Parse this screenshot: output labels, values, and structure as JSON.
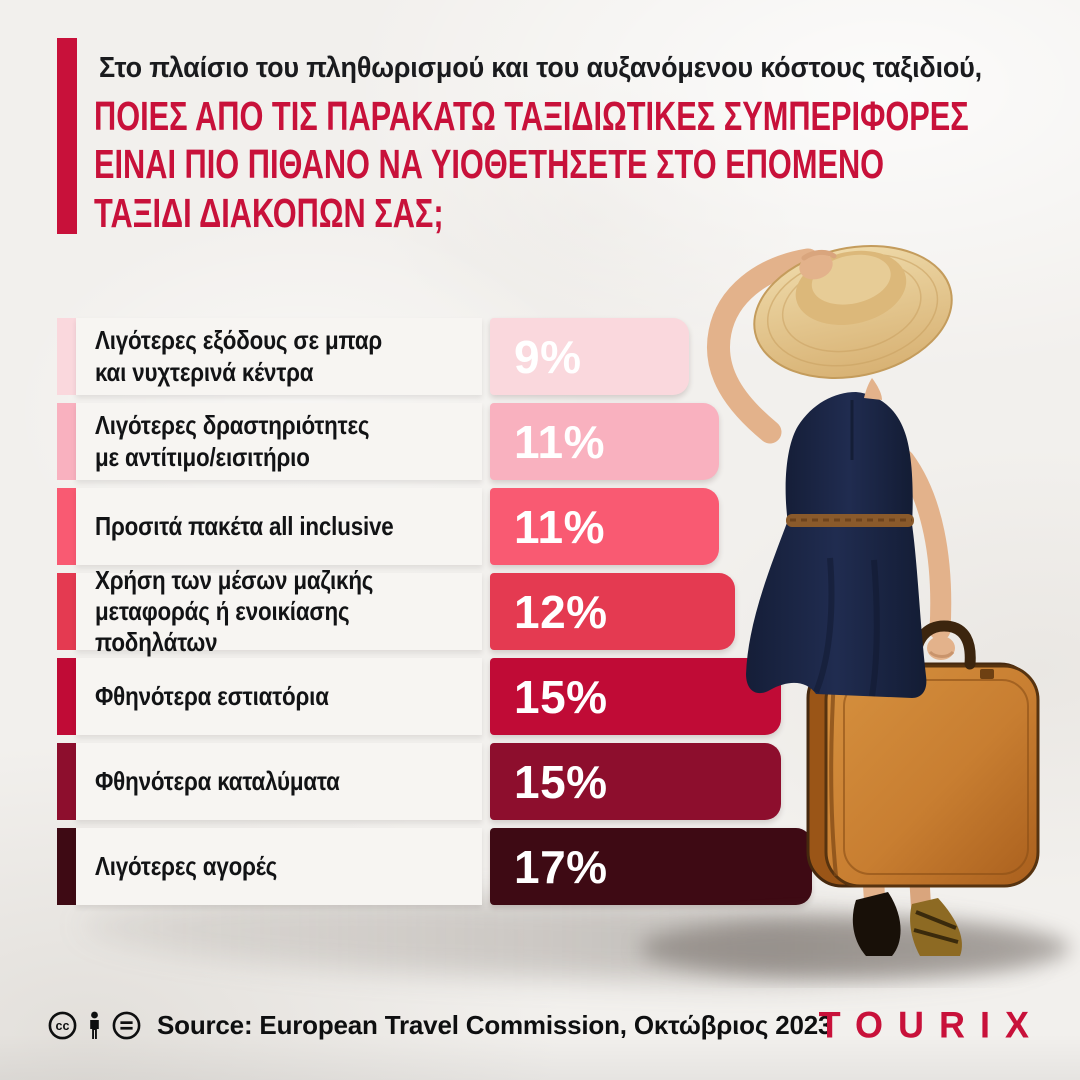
{
  "header": {
    "kicker": "Στο πλαίσιο του πληθωρισμού και του αυξανόμενου κόστους ταξιδιού,",
    "title": "ΠΟΙΕΣ ΑΠΟ ΤΙΣ ΠΑΡΑΚΑΤΩ ΤΑΞΙΔΙΩΤΙΚΕΣ ΣΥΜΠΕΡΙΦΟΡΕΣ\nΕΙΝΑΙ ΠΙΟ ΠΙΘΑΝΟ ΝΑ ΥΙΟΘΕΤΗΣΕΤΕ ΣΤΟ ΕΠΟΜΕΝΟ\nΤΑΞΙΔΙ ΔΙΑΚΟΠΩΝ ΣΑΣ;",
    "accent_color": "#c8113a"
  },
  "chart_data": {
    "type": "bar",
    "orientation": "horizontal",
    "unit": "%",
    "xlim": [
      0,
      17
    ],
    "grid": false,
    "legend": false,
    "value_label_position": "inside-start",
    "rows": [
      {
        "label": "Λιγότερες εξόδους σε μπαρ\nκαι νυχτερινά κέντρα",
        "value": 9,
        "value_label": "9%",
        "color": "#fad8dd"
      },
      {
        "label": "Λιγότερες δραστηριότητες\nμε αντίτιμο/εισιτήριο",
        "value": 11,
        "value_label": "11%",
        "color": "#f9b1bf"
      },
      {
        "label": "Προσιτά πακέτα all inclusive",
        "value": 11,
        "value_label": "11%",
        "color": "#f95a72"
      },
      {
        "label": "Χρήση των μέσων μαζικής\nμεταφοράς ή ενοικίασης ποδηλάτων",
        "value": 12,
        "value_label": "12%",
        "color": "#e43a51"
      },
      {
        "label": "Φθηνότερα εστιατόρια",
        "value": 15,
        "value_label": "15%",
        "color": "#c00b36"
      },
      {
        "label": "Φθηνότερα καταλύματα",
        "value": 15,
        "value_label": "15%",
        "color": "#8d0e2d"
      },
      {
        "label": "Λιγότερες αγορές",
        "value": 17,
        "value_label": "17%",
        "color": "#3e0a14"
      }
    ]
  },
  "footer": {
    "cc_label": "cc",
    "source": "Source: European Travel Commission, Οκτώβριος 2023",
    "brand": "TOURIX",
    "brand_color": "#c8113a"
  }
}
